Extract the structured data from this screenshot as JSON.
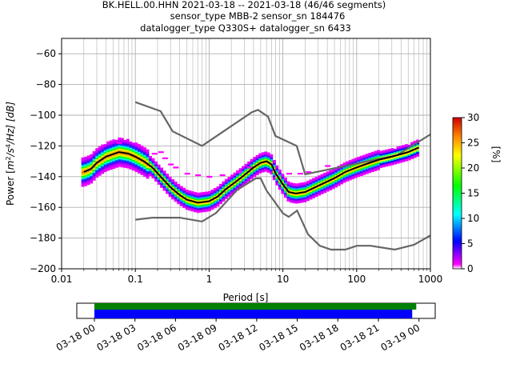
{
  "title_lines": [
    "BK.HELL.00.HHN   2021-03-18 -- 2021-03-18  (46/46 segments)",
    "sensor_type MBB-2 sensor_sn 184476",
    "datalogger_type Q330S+ datalogger_sn 6433"
  ],
  "chart_data": [
    {
      "type": "heatmap",
      "xlabel": "Period [s]",
      "ylabel": "Power [m²/s⁴/Hz] [dB]",
      "ylabel_parts": {
        "prefix": "Power [",
        "m": "m",
        "exp2": "2",
        "s": "/s",
        "exp4": "4",
        "hz": "/Hz] [dB]"
      },
      "xscale": "log",
      "xlim": [
        0.01,
        1000
      ],
      "ylim": [
        -200,
        -50
      ],
      "x_ticks": [
        0.01,
        0.1,
        1,
        10,
        100,
        1000
      ],
      "x_tick_labels": [
        "0.01",
        "0.1",
        "1",
        "10",
        "100",
        "1000"
      ],
      "y_ticks": [
        -200,
        -180,
        -160,
        -140,
        -120,
        -100,
        -80,
        -60
      ],
      "y_tick_labels": [
        "−200",
        "−180",
        "−160",
        "−140",
        "−120",
        "−100",
        "−80",
        "−60"
      ],
      "grid": true,
      "colorbar": {
        "label": "[%]",
        "range": [
          0,
          30
        ],
        "ticks": [
          0,
          5,
          10,
          15,
          20,
          25,
          30
        ],
        "tick_labels": [
          "0",
          "5",
          "10",
          "15",
          "20",
          "25",
          "30"
        ]
      },
      "mean_line": {
        "x": [
          0.02,
          0.025,
          0.03,
          0.04,
          0.06,
          0.08,
          0.1,
          0.13,
          0.17,
          0.22,
          0.3,
          0.4,
          0.5,
          0.7,
          1.0,
          1.3,
          1.7,
          2.2,
          3.0,
          4.0,
          5.0,
          6.0,
          7.0,
          8.0,
          10.0,
          12.0,
          15.0,
          20.0,
          30.0,
          50.0,
          70.0,
          100.0,
          150.0,
          200.0,
          300.0,
          500.0,
          700.0
        ],
        "y": [
          -137,
          -135,
          -131,
          -127,
          -124,
          -125,
          -127,
          -130,
          -134,
          -140,
          -147,
          -152,
          -155,
          -157,
          -156,
          -153,
          -148,
          -144,
          -139,
          -134,
          -131,
          -130,
          -132,
          -138,
          -145,
          -150,
          -151,
          -150,
          -146,
          -141,
          -137,
          -134,
          -131,
          -129,
          -127,
          -124,
          -121
        ]
      },
      "nhnm": {
        "x": [
          0.1,
          0.22,
          0.32,
          0.8,
          3.8,
          4.6,
          6.3,
          7.9,
          15.4,
          20,
          354.8,
          1000
        ],
        "y": [
          -91.5,
          -97.4,
          -110.5,
          -120,
          -98,
          -96.5,
          -101,
          -113.5,
          -120,
          -138.5,
          -126,
          -112.5
        ]
      },
      "nlnm": {
        "x": [
          0.1,
          0.17,
          0.4,
          0.8,
          1.24,
          2.4,
          4.3,
          5.0,
          6.0,
          10.0,
          12.0,
          15.6,
          21.9,
          31.6,
          45,
          70,
          101,
          154,
          328,
          600,
          1000
        ],
        "y": [
          -168,
          -166.7,
          -166.7,
          -169.2,
          -163.7,
          -148.6,
          -141.1,
          -141.1,
          -149,
          -163.8,
          -166.2,
          -162.1,
          -177.5,
          -185,
          -187.5,
          -187.5,
          -185,
          -185,
          -187.5,
          -184.4,
          -178.3
        ]
      }
    },
    {
      "type": "timeline",
      "x_tick_labels": [
        "03-18 00",
        "03-18 03",
        "03-18 06",
        "03-18 09",
        "03-18 12",
        "03-18 15",
        "03-18 18",
        "03-18 21",
        "03-19 00"
      ],
      "xlim_hours": [
        -1.3,
        25.2
      ],
      "bars": [
        {
          "color": "#008000",
          "start_hours": 0,
          "end_hours": 23.8
        },
        {
          "color": "#0000ff",
          "start_hours": 0,
          "end_hours": 23.5
        }
      ]
    }
  ],
  "colors": {
    "mean": "#000000",
    "noise_models": "#666666",
    "grid": "#b0b0b0"
  }
}
